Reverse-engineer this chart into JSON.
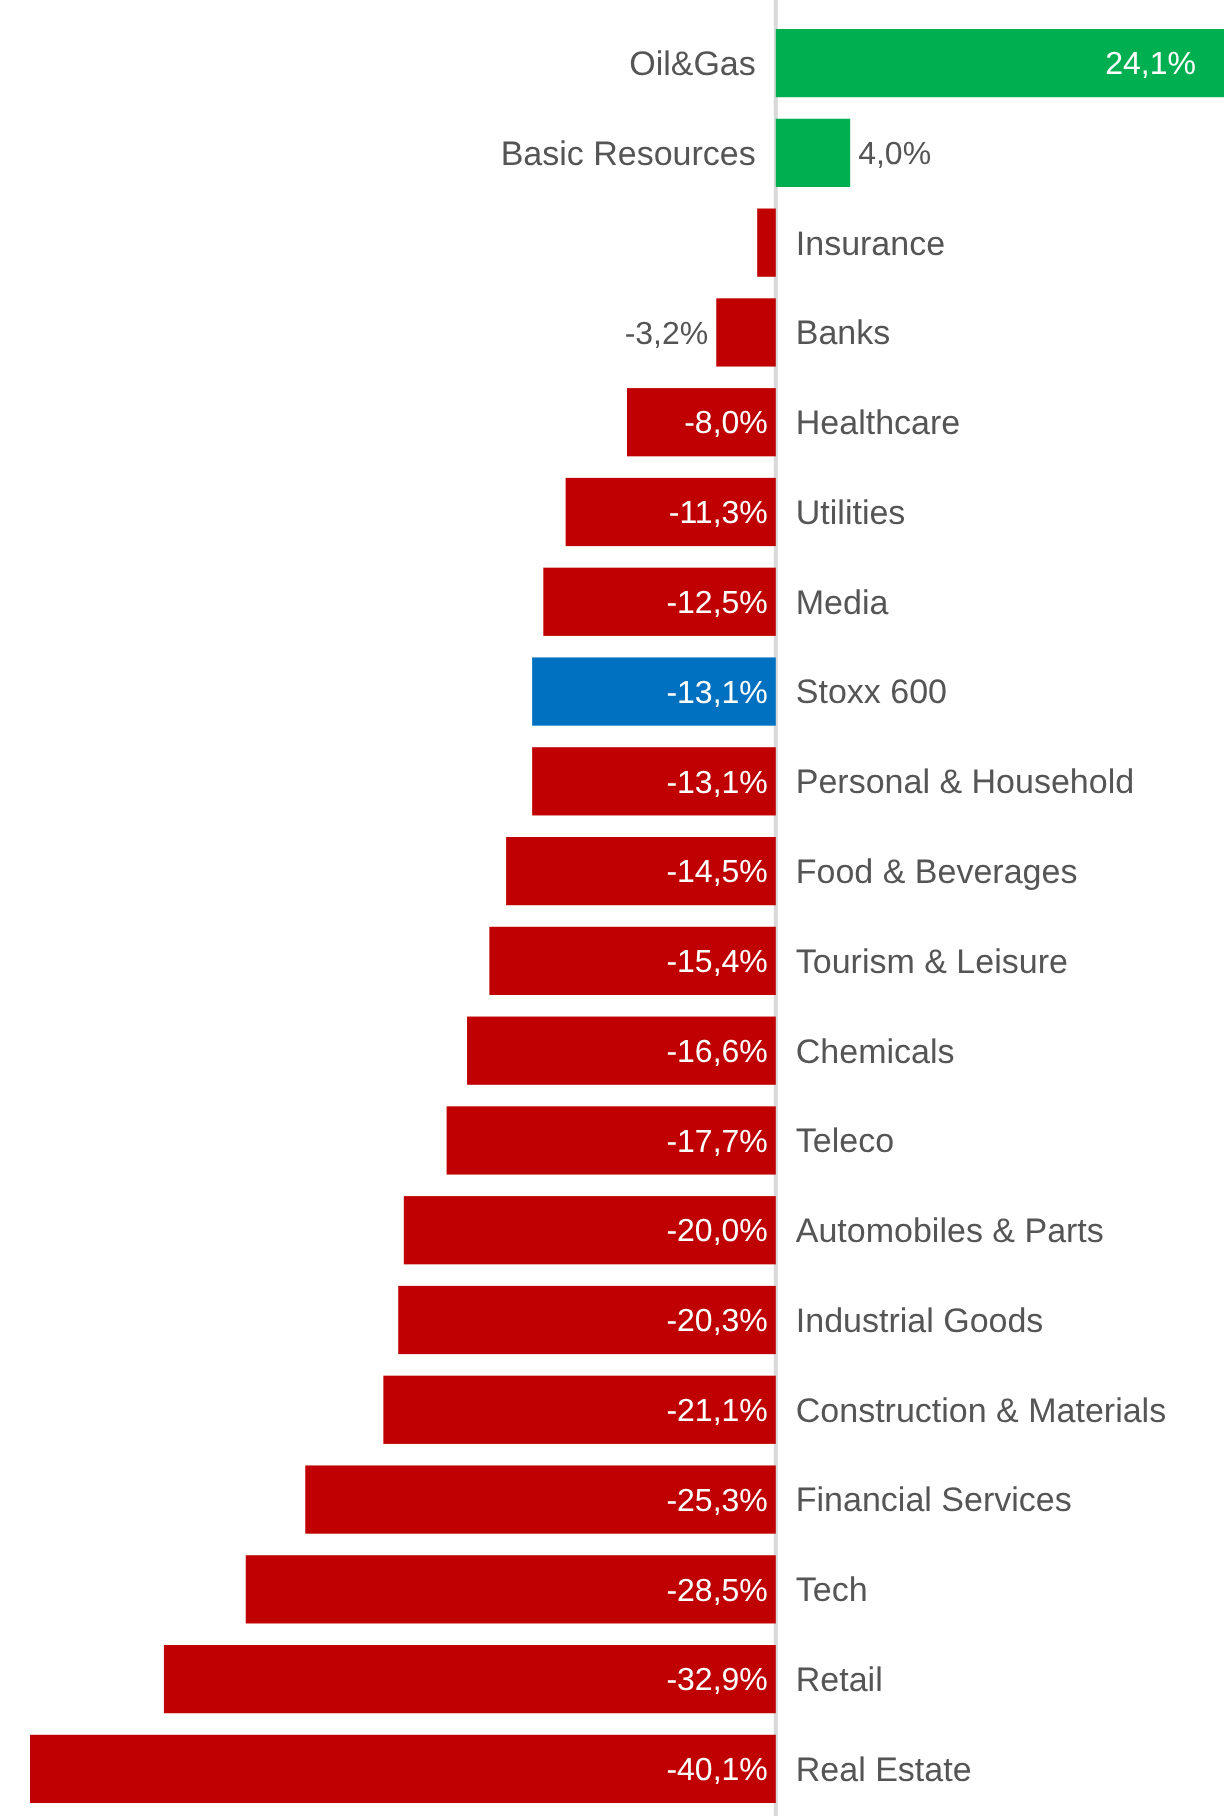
{
  "chart_data": {
    "type": "bar",
    "orientation": "horizontal",
    "categories": [
      "Oil&Gas",
      "Basic Resources",
      "Insurance",
      "Banks",
      "Healthcare",
      "Utilities",
      "Media",
      "Stoxx 600",
      "Personal & Household",
      "Food & Beverages",
      "Tourism & Leisure",
      "Chemicals",
      "Teleco",
      "Automobiles & Parts",
      "Industrial Goods",
      "Construction & Materials",
      "Financial Services",
      "Tech",
      "Retail",
      "Real Estate"
    ],
    "values": [
      24.1,
      4.0,
      -1.0,
      -3.2,
      -8.0,
      -11.3,
      -12.5,
      -13.1,
      -13.1,
      -14.5,
      -15.4,
      -16.6,
      -17.7,
      -20.0,
      -20.3,
      -21.1,
      -25.3,
      -28.5,
      -32.9,
      -40.1
    ],
    "value_labels": [
      "24,1%",
      "4,0%",
      null,
      "-3,2%",
      "-8,0%",
      "-11,3%",
      "-12,5%",
      "-13,1%",
      "-13,1%",
      "-14,5%",
      "-15,4%",
      "-16,6%",
      "-17,7%",
      "-20,0%",
      "-20,3%",
      "-21,1%",
      "-25,3%",
      "-28,5%",
      "-32,9%",
      "-40,1%"
    ],
    "colors": [
      "#00b050",
      "#00b050",
      "#c00000",
      "#c00000",
      "#c00000",
      "#c00000",
      "#c00000",
      "#0070c0",
      "#c00000",
      "#c00000",
      "#c00000",
      "#c00000",
      "#c00000",
      "#c00000",
      "#c00000",
      "#c00000",
      "#c00000",
      "#c00000",
      "#c00000",
      "#c00000"
    ]
  }
}
